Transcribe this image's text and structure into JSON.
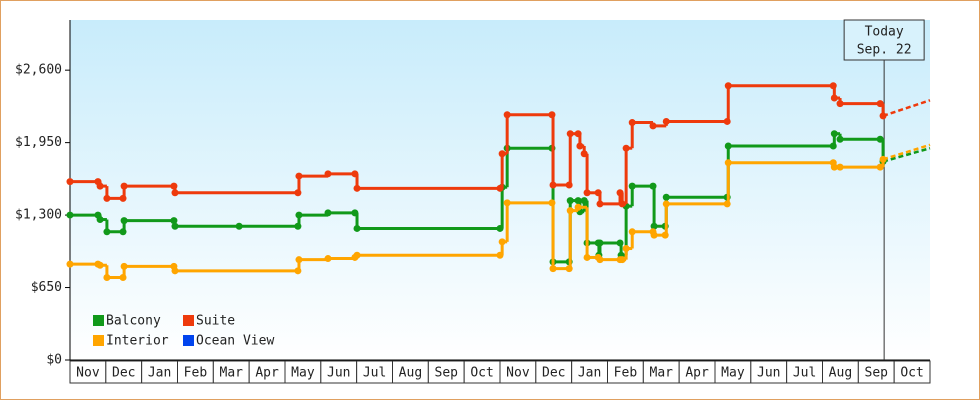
{
  "chart_data": {
    "type": "step-line",
    "categories": [
      "Nov",
      "Dec",
      "Jan",
      "Feb",
      "Mar",
      "Apr",
      "May",
      "Jun",
      "Jul",
      "Aug",
      "Sep",
      "Oct",
      "Nov",
      "Dec",
      "Jan",
      "Feb",
      "Mar",
      "Apr",
      "May",
      "Jun",
      "Jul",
      "Aug",
      "Sep",
      "Oct"
    ],
    "xlim": [
      0,
      24
    ],
    "ylim": [
      0,
      3050
    ],
    "yticks": [
      {
        "value": 0,
        "label": "$0"
      },
      {
        "value": 650,
        "label": "$650"
      },
      {
        "value": 1300,
        "label": "$1,300"
      },
      {
        "value": 1950,
        "label": "$1,950"
      },
      {
        "value": 2600,
        "label": "$2,600"
      }
    ],
    "legend": "bottom-left",
    "today": {
      "x": 22.72,
      "label": "Today",
      "date": "Sep. 22"
    },
    "series": [
      {
        "name": "Balcony",
        "color": "#11991a",
        "x": [
          0,
          0.78,
          0.84,
          1.03,
          1.48,
          1.51,
          2.9,
          2.93,
          4.72,
          6.36,
          6.39,
          7.2,
          7.95,
          8.01,
          12,
          12.06,
          12.2,
          13.45,
          13.48,
          13.93,
          13.96,
          14.18,
          14.23,
          14.35,
          14.43,
          14.74,
          14.76,
          14.79,
          15.35,
          15.38,
          15.52,
          15.69,
          16.27,
          16.3,
          16.61,
          16.64,
          18.34,
          18.37,
          21.3,
          21.33,
          21.49,
          22.61,
          22.69
        ],
        "values": [
          1300,
          1300,
          1260,
          1150,
          1150,
          1250,
          1250,
          1200,
          1200,
          1200,
          1300,
          1320,
          1320,
          1180,
          1180,
          1550,
          1900,
          1900,
          880,
          880,
          1430,
          1430,
          1330,
          1430,
          1050,
          1050,
          940,
          1050,
          1050,
          940,
          1380,
          1560,
          1560,
          1200,
          1200,
          1460,
          1460,
          1920,
          1920,
          2030,
          1980,
          1980,
          1780
        ],
        "forecast": {
          "x": [
            22.69,
            24
          ],
          "values": [
            1780,
            1900
          ]
        }
      },
      {
        "name": "Suite",
        "color": "#ee3a0c",
        "x": [
          0,
          0.78,
          0.84,
          1.03,
          1.48,
          1.51,
          2.9,
          2.93,
          6.36,
          6.39,
          7.2,
          7.95,
          8.01,
          12,
          12.06,
          12.2,
          13.45,
          13.48,
          13.93,
          13.96,
          14.18,
          14.23,
          14.35,
          14.43,
          14.74,
          14.79,
          15.35,
          15.41,
          15.52,
          15.69,
          16.27,
          16.64,
          18.34,
          18.37,
          21.3,
          21.33,
          21.49,
          22.61,
          22.69
        ],
        "values": [
          1600,
          1600,
          1560,
          1450,
          1450,
          1560,
          1560,
          1500,
          1500,
          1650,
          1670,
          1670,
          1540,
          1540,
          1850,
          2200,
          2200,
          1570,
          1570,
          2030,
          2030,
          1920,
          1850,
          1500,
          1500,
          1400,
          1500,
          1400,
          1900,
          2130,
          2100,
          2140,
          2140,
          2460,
          2460,
          2350,
          2300,
          2300,
          2190
        ],
        "forecast": {
          "x": [
            22.69,
            24
          ],
          "values": [
            2190,
            2330
          ]
        }
      },
      {
        "name": "Interior",
        "color": "#ffa500",
        "x": [
          0,
          0.78,
          0.84,
          1.03,
          1.48,
          1.51,
          2.9,
          2.93,
          6.36,
          6.39,
          7.2,
          7.95,
          8.01,
          12,
          12.06,
          12.2,
          13.45,
          13.48,
          13.93,
          13.96,
          14.18,
          14.43,
          14.74,
          14.79,
          15.35,
          15.41,
          15.52,
          15.69,
          16.27,
          16.3,
          16.61,
          16.64,
          18.34,
          18.37,
          21.3,
          21.33,
          21.49,
          22.61,
          22.69
        ],
        "values": [
          860,
          860,
          850,
          740,
          740,
          840,
          840,
          800,
          800,
          900,
          910,
          920,
          940,
          940,
          1060,
          1410,
          1410,
          820,
          820,
          1340,
          1370,
          920,
          920,
          900,
          900,
          900,
          1000,
          1150,
          1150,
          1120,
          1120,
          1400,
          1400,
          1770,
          1770,
          1730,
          1730,
          1730,
          1800
        ],
        "forecast": {
          "x": [
            22.69,
            24
          ],
          "values": [
            1800,
            1930
          ]
        }
      },
      {
        "name": "Ocean View",
        "color": "#0044ee",
        "x": [],
        "values": []
      }
    ]
  }
}
